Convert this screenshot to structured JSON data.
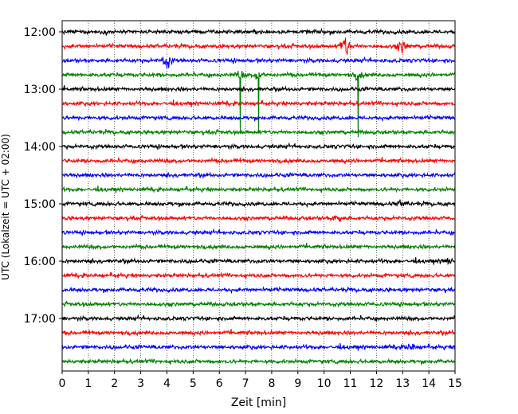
{
  "chart_data": {
    "type": "line",
    "xlabel": "Zeit  [min]",
    "ylabel": "UTC (Lokalzeit = UTC + 02:00)",
    "xlim": [
      0,
      15
    ],
    "x_ticks": [
      0,
      1,
      2,
      3,
      4,
      5,
      6,
      7,
      8,
      9,
      10,
      11,
      12,
      13,
      14,
      15
    ],
    "y_ticks": [
      "12:00",
      "13:00",
      "14:00",
      "15:00",
      "16:00",
      "17:00"
    ],
    "grid": "vertical dotted",
    "colors": [
      "#000000",
      "#ff0000",
      "#0000ff",
      "#008000"
    ],
    "traces": [
      {
        "start": "12:00",
        "color": "#000000"
      },
      {
        "start": "12:15",
        "color": "#ff0000"
      },
      {
        "start": "12:30",
        "color": "#0000ff"
      },
      {
        "start": "12:45",
        "color": "#008000"
      },
      {
        "start": "13:00",
        "color": "#000000"
      },
      {
        "start": "13:15",
        "color": "#ff0000"
      },
      {
        "start": "13:30",
        "color": "#0000ff"
      },
      {
        "start": "13:45",
        "color": "#008000"
      },
      {
        "start": "14:00",
        "color": "#000000"
      },
      {
        "start": "14:15",
        "color": "#ff0000"
      },
      {
        "start": "14:30",
        "color": "#0000ff"
      },
      {
        "start": "14:45",
        "color": "#008000"
      },
      {
        "start": "15:00",
        "color": "#000000"
      },
      {
        "start": "15:15",
        "color": "#ff0000"
      },
      {
        "start": "15:30",
        "color": "#0000ff"
      },
      {
        "start": "15:45",
        "color": "#008000"
      },
      {
        "start": "16:00",
        "color": "#000000"
      },
      {
        "start": "16:15",
        "color": "#ff0000"
      },
      {
        "start": "16:30",
        "color": "#0000ff"
      },
      {
        "start": "16:45",
        "color": "#008000"
      },
      {
        "start": "17:00",
        "color": "#000000"
      },
      {
        "start": "17:15",
        "color": "#ff0000"
      },
      {
        "start": "17:30",
        "color": "#0000ff"
      },
      {
        "start": "17:45",
        "color": "#008000"
      }
    ],
    "events": [
      {
        "trace": "12:15",
        "x": 10.8,
        "amplitude": "large"
      },
      {
        "trace": "12:15",
        "x": 13.0,
        "amplitude": "medium"
      },
      {
        "trace": "12:30",
        "x": 4.0,
        "amplitude": "medium"
      },
      {
        "trace": "12:45",
        "x": 6.8,
        "amplitude": "very large"
      },
      {
        "trace": "12:45",
        "x": 7.5,
        "amplitude": "very large"
      },
      {
        "trace": "12:45",
        "x": 11.3,
        "amplitude": "very large"
      },
      {
        "trace": "15:00",
        "x": 13.0,
        "amplitude": "small"
      },
      {
        "trace": "15:15",
        "x": 10.5,
        "amplitude": "small"
      },
      {
        "trace": "16:00",
        "x": 14.7,
        "amplitude": "small"
      },
      {
        "trace": "17:30",
        "x": 13.3,
        "amplitude": "small"
      }
    ]
  }
}
